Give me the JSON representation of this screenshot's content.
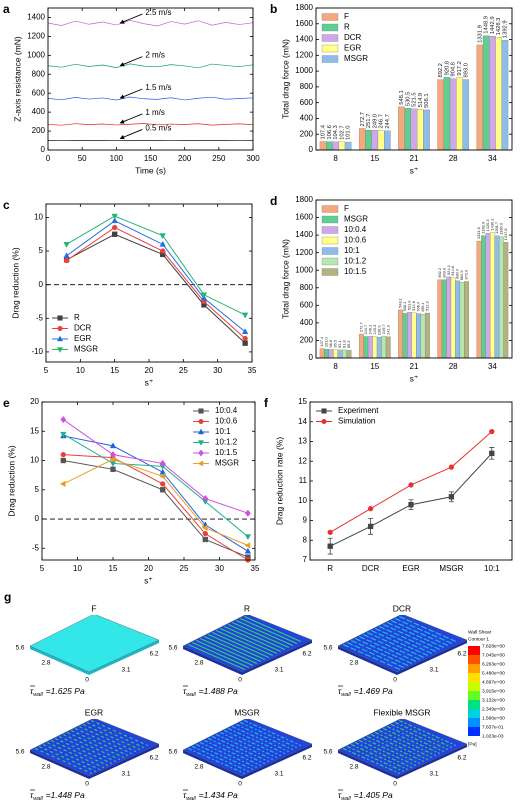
{
  "chart_data": [
    {
      "type": "line",
      "panel": "a",
      "xlabel": "Time (s)",
      "ylabel": "Z-axis resistance (mN)",
      "x": [
        0,
        20,
        40,
        60,
        80,
        100,
        120,
        140,
        160,
        180,
        200,
        220,
        240,
        260,
        280,
        300
      ],
      "xlim": [
        0,
        300
      ],
      "xticks": [
        0,
        50,
        100,
        150,
        200,
        250,
        300
      ],
      "ylim": [
        0,
        1500
      ],
      "yticks": [
        0,
        200,
        400,
        600,
        800,
        1000,
        1200,
        1400
      ],
      "legend": "inline",
      "series": [
        {
          "name": "2.5 m/s",
          "color": "#c060e0",
          "values": [
            1340,
            1315,
            1362,
            1328,
            1352,
            1320,
            1370,
            1335,
            1310,
            1358,
            1330,
            1366,
            1318,
            1348,
            1325,
            1345
          ]
        },
        {
          "name": "2 m/s",
          "color": "#0f9f5f",
          "values": [
            890,
            875,
            905,
            882,
            898,
            870,
            910,
            886,
            879,
            902,
            888,
            868,
            908,
            893,
            880,
            900
          ]
        },
        {
          "name": "1.5 m/s",
          "color": "#1f5fe8",
          "values": [
            545,
            530,
            556,
            538,
            550,
            528,
            560,
            541,
            535,
            552,
            529,
            547,
            558,
            536,
            544,
            550
          ]
        },
        {
          "name": "1 m/s",
          "color": "#e8251f",
          "values": [
            270,
            262,
            278,
            268,
            275,
            265,
            272,
            280,
            266,
            274,
            269,
            277,
            263,
            271,
            276,
            268
          ]
        },
        {
          "name": "0.5 m/s",
          "color": "#111111",
          "values": [
            100,
            101,
            99,
            100,
            100,
            101,
            100,
            99,
            100,
            101,
            100,
            100,
            99,
            100,
            101,
            100
          ]
        }
      ]
    },
    {
      "type": "bar",
      "panel": "b",
      "xlabel": "s⁺",
      "ylabel": "Total drag force (mN)",
      "categories": [
        "8",
        "15",
        "21",
        "28",
        "34"
      ],
      "ylim": [
        0,
        1800
      ],
      "yticks": [
        0,
        200,
        400,
        600,
        800,
        1000,
        1200,
        1400,
        1600,
        1800
      ],
      "legend": "upper left",
      "series": [
        {
          "name": "F",
          "color": "#f7a77c",
          "values": [
            107.4,
            272.7,
            548.1,
            892.2,
            1331.9
          ],
          "value_labels": [
            "107.4",
            "272.7",
            "548.1",
            "892.2",
            "1331.9"
          ]
        },
        {
          "name": "R",
          "color": "#5fcf8f",
          "values": [
            106.6,
            251.7,
            530.5,
            920.8,
            1448.9
          ],
          "value_labels": [
            "106.6",
            "251.7",
            "530.5",
            "920.8",
            "1448.9"
          ]
        },
        {
          "name": "DCR",
          "color": "#cfa8ec",
          "values": [
            104.3,
            249.0,
            521.5,
            904.8,
            1442.9
          ],
          "value_labels": [
            "104.3",
            "249.0",
            "521.5",
            "904.8",
            "1442.9"
          ]
        },
        {
          "name": "EGR",
          "color": "#ffff8a",
          "values": [
            102.7,
            246.7,
            514.9,
            917.2,
            1428.3
          ],
          "value_labels": [
            "102.7",
            "246.7",
            "514.9",
            "917.2",
            "1428.3"
          ]
        },
        {
          "name": "MSGR",
          "color": "#8fbde9",
          "values": [
            101.0,
            244.7,
            508.1,
            893.0,
            1392.9
          ],
          "value_labels": [
            "101.0",
            "244.7",
            "508.1",
            "893.0",
            "1392.9"
          ]
        }
      ]
    },
    {
      "type": "line",
      "panel": "c",
      "xlabel": "s⁺",
      "ylabel": "Drag reduction (%)",
      "x": [
        8,
        15,
        22,
        28,
        34
      ],
      "xlim": [
        5,
        35
      ],
      "xticks": [
        5,
        10,
        15,
        20,
        25,
        30,
        35
      ],
      "ylim": [
        -11.5,
        12
      ],
      "yticks": [
        -10,
        -5,
        0,
        5,
        10
      ],
      "zero_line": true,
      "legend": "lower left",
      "series": [
        {
          "name": "R",
          "color": "#404040",
          "marker": "square",
          "values": [
            3.7,
            7.5,
            4.5,
            -3.0,
            -8.7
          ]
        },
        {
          "name": "DCR",
          "color": "#e8413a",
          "marker": "circle",
          "values": [
            3.6,
            8.5,
            5.0,
            -2.5,
            -8.0
          ]
        },
        {
          "name": "EGR",
          "color": "#1f6fe0",
          "marker": "triangle",
          "values": [
            4.3,
            9.5,
            6.0,
            -2.0,
            -7.0
          ]
        },
        {
          "name": "MSGR",
          "color": "#22b573",
          "marker": "triangle-down",
          "values": [
            6.0,
            10.2,
            7.3,
            -1.5,
            -4.5
          ]
        }
      ]
    },
    {
      "type": "bar",
      "panel": "d",
      "xlabel": "s⁺",
      "ylabel": "Total drag force (mN)",
      "categories": [
        "8",
        "15",
        "21",
        "28",
        "34"
      ],
      "ylim": [
        0,
        1800
      ],
      "yticks": [
        0,
        200,
        400,
        600,
        800,
        1000,
        1200,
        1400,
        1600,
        1800
      ],
      "legend": "upper left",
      "series": [
        {
          "name": "F",
          "color": "#f7a77c",
          "values": [
            107.4,
            272.7,
            548.1,
            892.2,
            1331.9
          ],
          "value_labels": [
            "107.4",
            "272.7",
            "548.1",
            "892.2",
            "1331.9"
          ]
        },
        {
          "name": "MSGR",
          "color": "#5fcf8f",
          "values": [
            101.0,
            244.7,
            508.1,
            893.0,
            1392.9
          ],
          "value_labels": [
            "101.0",
            "244.7",
            "508.1",
            "893.0",
            "1392.9"
          ]
        },
        {
          "name": "10:0.4",
          "color": "#cfa8ec",
          "values": [
            96.6,
            246.1,
            521.0,
            924.1,
            1420.3
          ],
          "value_labels": [
            "96.6",
            "246.1",
            "521.0",
            "924.1",
            "1420.3"
          ]
        },
        {
          "name": "10:0.6",
          "color": "#ffff8a",
          "values": [
            95.5,
            245.3,
            514.6,
            914.6,
            1430.1
          ],
          "value_labels": [
            "95.5",
            "245.3",
            "514.6",
            "914.6",
            "1430.1"
          ]
        },
        {
          "name": "10:1",
          "color": "#8fbde9",
          "values": [
            92.1,
            236.9,
            506.4,
            880.4,
            1391.7
          ],
          "value_labels": [
            "92.1",
            "236.9",
            "506.4",
            "880.4",
            "1391.7"
          ]
        },
        {
          "name": "10:1.2",
          "color": "#b6e7b0",
          "values": [
            91.8,
            249.7,
            499.4,
            862.9,
            1380.0
          ],
          "value_labels": [
            "91.8",
            "249.7",
            "499.4",
            "862.9",
            "1380.0"
          ]
        },
        {
          "name": "10:1.5",
          "color": "#b4b27e",
          "values": [
            89.3,
            241.3,
            512.3,
            872.0,
            1317.8
          ],
          "value_labels": [
            "89.3",
            "241.3",
            "512.3",
            "872.0",
            "1317.8"
          ]
        }
      ]
    },
    {
      "type": "line",
      "panel": "e",
      "xlabel": "s⁺",
      "ylabel": "Drag reduction (%)",
      "x": [
        8,
        15,
        22,
        28,
        34
      ],
      "xlim": [
        5,
        35
      ],
      "xticks": [
        5,
        10,
        15,
        20,
        25,
        30,
        35
      ],
      "ylim": [
        -7,
        20
      ],
      "yticks": [
        -5,
        0,
        5,
        10,
        15,
        20
      ],
      "zero_line": true,
      "legend": "upper right",
      "series": [
        {
          "name": "10:0.4",
          "color": "#555555",
          "marker": "square",
          "values": [
            10.0,
            8.5,
            5.0,
            -3.5,
            -6.5
          ]
        },
        {
          "name": "10:0.6",
          "color": "#e8413a",
          "marker": "circle",
          "values": [
            11.0,
            10.5,
            6.0,
            -2.5,
            -7.0
          ]
        },
        {
          "name": "10:1",
          "color": "#2060e0",
          "marker": "triangle",
          "values": [
            14.2,
            12.5,
            8.0,
            -1.0,
            -5.5
          ]
        },
        {
          "name": "10:1.2",
          "color": "#20b090",
          "marker": "triangle-down",
          "values": [
            14.5,
            9.5,
            9.0,
            3.0,
            -3.0
          ]
        },
        {
          "name": "10:1.5",
          "color": "#d050e0",
          "marker": "diamond",
          "values": [
            17.0,
            11.0,
            9.5,
            3.5,
            1.0
          ]
        },
        {
          "name": "MSGR",
          "color": "#e8a020",
          "marker": "triangle-left",
          "values": [
            6.0,
            10.2,
            7.3,
            -1.5,
            -4.5
          ]
        }
      ]
    },
    {
      "type": "line",
      "panel": "f",
      "ylabel": "Drag reduction rate (%)",
      "categories": [
        "R",
        "DCR",
        "EGR",
        "MSGR",
        "10:1"
      ],
      "ylim": [
        7,
        15
      ],
      "yticks": [
        7,
        8,
        9,
        10,
        11,
        12,
        13,
        14,
        15
      ],
      "legend": "upper left",
      "series": [
        {
          "name": "Experiment",
          "color": "#444444",
          "marker": "square",
          "values": [
            7.7,
            8.7,
            9.8,
            10.2,
            12.4
          ],
          "errors": [
            0.4,
            0.4,
            0.25,
            0.25,
            0.3
          ]
        },
        {
          "name": "Simulation",
          "color": "#e83030",
          "marker": "circle",
          "values": [
            8.4,
            9.6,
            10.8,
            11.7,
            13.5
          ]
        }
      ]
    }
  ],
  "panel_g": {
    "panel": "g",
    "tau_symbol": "τ",
    "tau_subscript": "wall",
    "axis_ticks": [
      "5.6",
      "2.8",
      "0",
      "3.1",
      "6.2"
    ],
    "plates": [
      {
        "title": "F",
        "tau": "=1.625 Pa"
      },
      {
        "title": "R",
        "tau": "=1.488 Pa"
      },
      {
        "title": "DCR",
        "tau": "=1.469 Pa"
      },
      {
        "title": "EGR",
        "tau": "=1.448 Pa"
      },
      {
        "title": "MSGR",
        "tau": "=1.434 Pa"
      },
      {
        "title": "Flexible MSGR",
        "tau": "=1.405 Pa"
      }
    ],
    "colorbar": {
      "title": [
        "Wall Shear",
        "Contour 1"
      ],
      "unit": "[Pa]",
      "labels": [
        "7.828e+00",
        "7.045e+00",
        "6.263e+00",
        "5.480e+00",
        "4.697e+00",
        "3.915e+00",
        "3.132e+00",
        "2.349e+00",
        "1.566e+00",
        "7.837e-01",
        "1.023e-03"
      ]
    }
  }
}
